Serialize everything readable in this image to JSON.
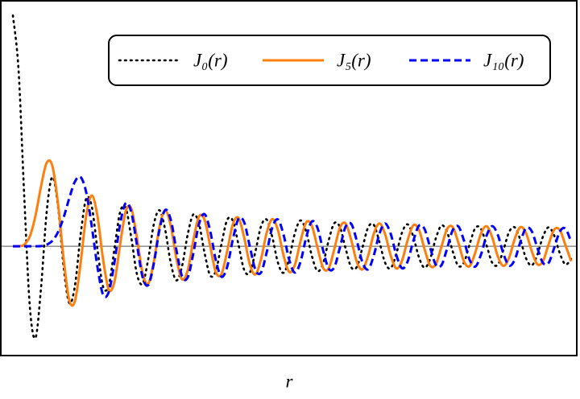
{
  "chart_data": {
    "type": "line",
    "xlabel": "r",
    "xlim": [
      -2,
      100
    ],
    "ylim": [
      -0.47,
      1.06
    ],
    "legend": "upper right",
    "x": [
      0,
      1,
      2,
      3,
      4,
      5,
      6,
      7,
      8,
      9,
      10,
      11,
      12,
      13,
      14,
      15,
      16,
      17,
      18,
      19,
      20,
      21,
      22,
      23,
      24,
      25,
      26,
      27,
      28,
      29,
      30,
      31,
      32,
      33,
      34,
      35,
      36,
      37,
      38,
      39,
      40,
      41,
      42,
      43,
      44,
      45,
      46,
      47,
      48,
      49,
      50,
      51,
      52,
      53,
      54,
      55,
      56,
      57,
      58,
      59,
      60,
      61,
      62,
      63,
      64,
      65,
      66,
      67,
      68,
      69,
      70,
      71,
      72,
      73,
      74,
      75,
      76,
      77,
      78,
      79,
      80,
      81,
      82,
      83,
      84,
      85,
      86,
      87,
      88,
      89,
      90,
      91,
      92,
      93,
      94,
      95,
      96,
      97,
      98,
      99
    ],
    "series": [
      {
        "name": "J₀(r)",
        "color": "#000000",
        "linestyle": "dotted",
        "values": [
          1,
          0.765,
          0.224,
          -0.26,
          -0.397,
          -0.178,
          0.151,
          0.3,
          0.172,
          -0.09,
          -0.246,
          -0.171,
          0.048,
          0.207,
          0.171,
          -0.014,
          -0.175,
          -0.17,
          -0.013,
          0.147,
          0.167,
          0.037,
          -0.121,
          -0.162,
          -0.056,
          0.096,
          0.156,
          0.073,
          -0.073,
          -0.148,
          -0.086,
          0.051,
          0.138,
          0.097,
          -0.03,
          -0.127,
          -0.106,
          0.011,
          0.114,
          0.111,
          0.008,
          -0.101,
          -0.115,
          -0.024,
          0.086,
          0.116,
          0.04,
          -0.071,
          -0.115,
          -0.053,
          0.056,
          0.112,
          0.065,
          -0.04,
          -0.107,
          -0.075,
          0.025,
          0.1,
          0.083,
          -0.009,
          -0.091,
          -0.089,
          -0.005,
          0.082,
          0.093,
          0.019,
          -0.071,
          -0.095,
          -0.032,
          0.059,
          0.095,
          0.043,
          -0.047,
          -0.093,
          -0.054,
          0.034,
          0.09,
          0.062,
          -0.022,
          -0.085,
          -0.07,
          0.009,
          0.079,
          0.076,
          0.004,
          -0.071,
          -0.08,
          -0.015,
          0.062,
          0.082,
          0.027,
          -0.052,
          -0.083,
          -0.037,
          0.042,
          0.082,
          0.046,
          -0.031,
          -0.079,
          -0.055
        ]
      },
      {
        "name": "J₅(r)",
        "color": "#ff7f0e",
        "linestyle": "solid",
        "values": [
          0,
          0,
          0.007,
          0.043,
          0.132,
          0.261,
          0.362,
          0.348,
          0.186,
          -0.055,
          -0.234,
          -0.238,
          -0.074,
          0.132,
          0.22,
          0.13,
          -0.057,
          -0.187,
          -0.155,
          0.005,
          0.151,
          0.164,
          0.037,
          -0.116,
          -0.162,
          -0.066,
          0.084,
          0.155,
          0.088,
          -0.054,
          -0.143,
          -0.104,
          0.026,
          0.129,
          0.114,
          -0.001,
          -0.113,
          -0.12,
          -0.021,
          0.095,
          0.123,
          0.04,
          -0.077,
          -0.122,
          -0.056,
          0.058,
          0.118,
          0.07,
          -0.04,
          -0.111,
          -0.081,
          0.021,
          0.103,
          0.09,
          -0.004,
          -0.093,
          -0.096,
          -0.012,
          0.081,
          0.099,
          0.027,
          -0.068,
          -0.1,
          -0.041,
          0.054,
          0.099,
          0.053,
          -0.04,
          -0.096,
          -0.063,
          0.026,
          0.091,
          0.072,
          -0.012,
          -0.084,
          -0.078,
          -0.002,
          0.075,
          0.083,
          0.015,
          -0.066,
          -0.086,
          -0.027,
          0.055,
          0.087,
          0.039,
          -0.044,
          -0.085,
          -0.049,
          0.032,
          0.083,
          0.057,
          -0.02,
          -0.078,
          -0.065,
          0.008,
          0.072,
          0.07,
          0.004,
          -0.065
        ]
      },
      {
        "name": "J₁₀(r)",
        "color": "#0000ff",
        "linestyle": "dashed",
        "values": [
          0,
          0,
          0,
          0,
          0,
          0.001,
          0.007,
          0.024,
          0.061,
          0.125,
          0.208,
          0.28,
          0.3,
          0.234,
          0.085,
          -0.09,
          -0.21,
          -0.198,
          -0.071,
          0.094,
          0.187,
          0.147,
          0.006,
          -0.133,
          -0.168,
          -0.074,
          0.072,
          0.157,
          0.115,
          -0.017,
          -0.13,
          -0.135,
          -0.031,
          0.096,
          0.139,
          0.065,
          -0.062,
          -0.132,
          -0.089,
          0.029,
          0.119,
          0.105,
          0.001,
          -0.101,
          -0.114,
          -0.027,
          0.081,
          0.116,
          0.05,
          -0.059,
          -0.114,
          -0.068,
          0.037,
          0.107,
          0.081,
          -0.016,
          -0.097,
          -0.091,
          -0.005,
          0.085,
          0.097,
          0.023,
          -0.07,
          -0.1,
          -0.04,
          0.054,
          0.099,
          0.054,
          -0.038,
          -0.095,
          -0.066,
          0.022,
          0.089,
          0.075,
          -0.006,
          -0.08,
          -0.082,
          -0.01,
          0.07,
          0.086,
          0.024,
          -0.059,
          -0.088,
          -0.037,
          0.046,
          0.087,
          0.049,
          -0.033,
          -0.084,
          -0.058,
          0.019,
          0.079,
          0.066,
          -0.006,
          -0.072,
          -0.072,
          -0.007,
          0.064,
          0.076,
          0.019
        ]
      }
    ]
  }
}
